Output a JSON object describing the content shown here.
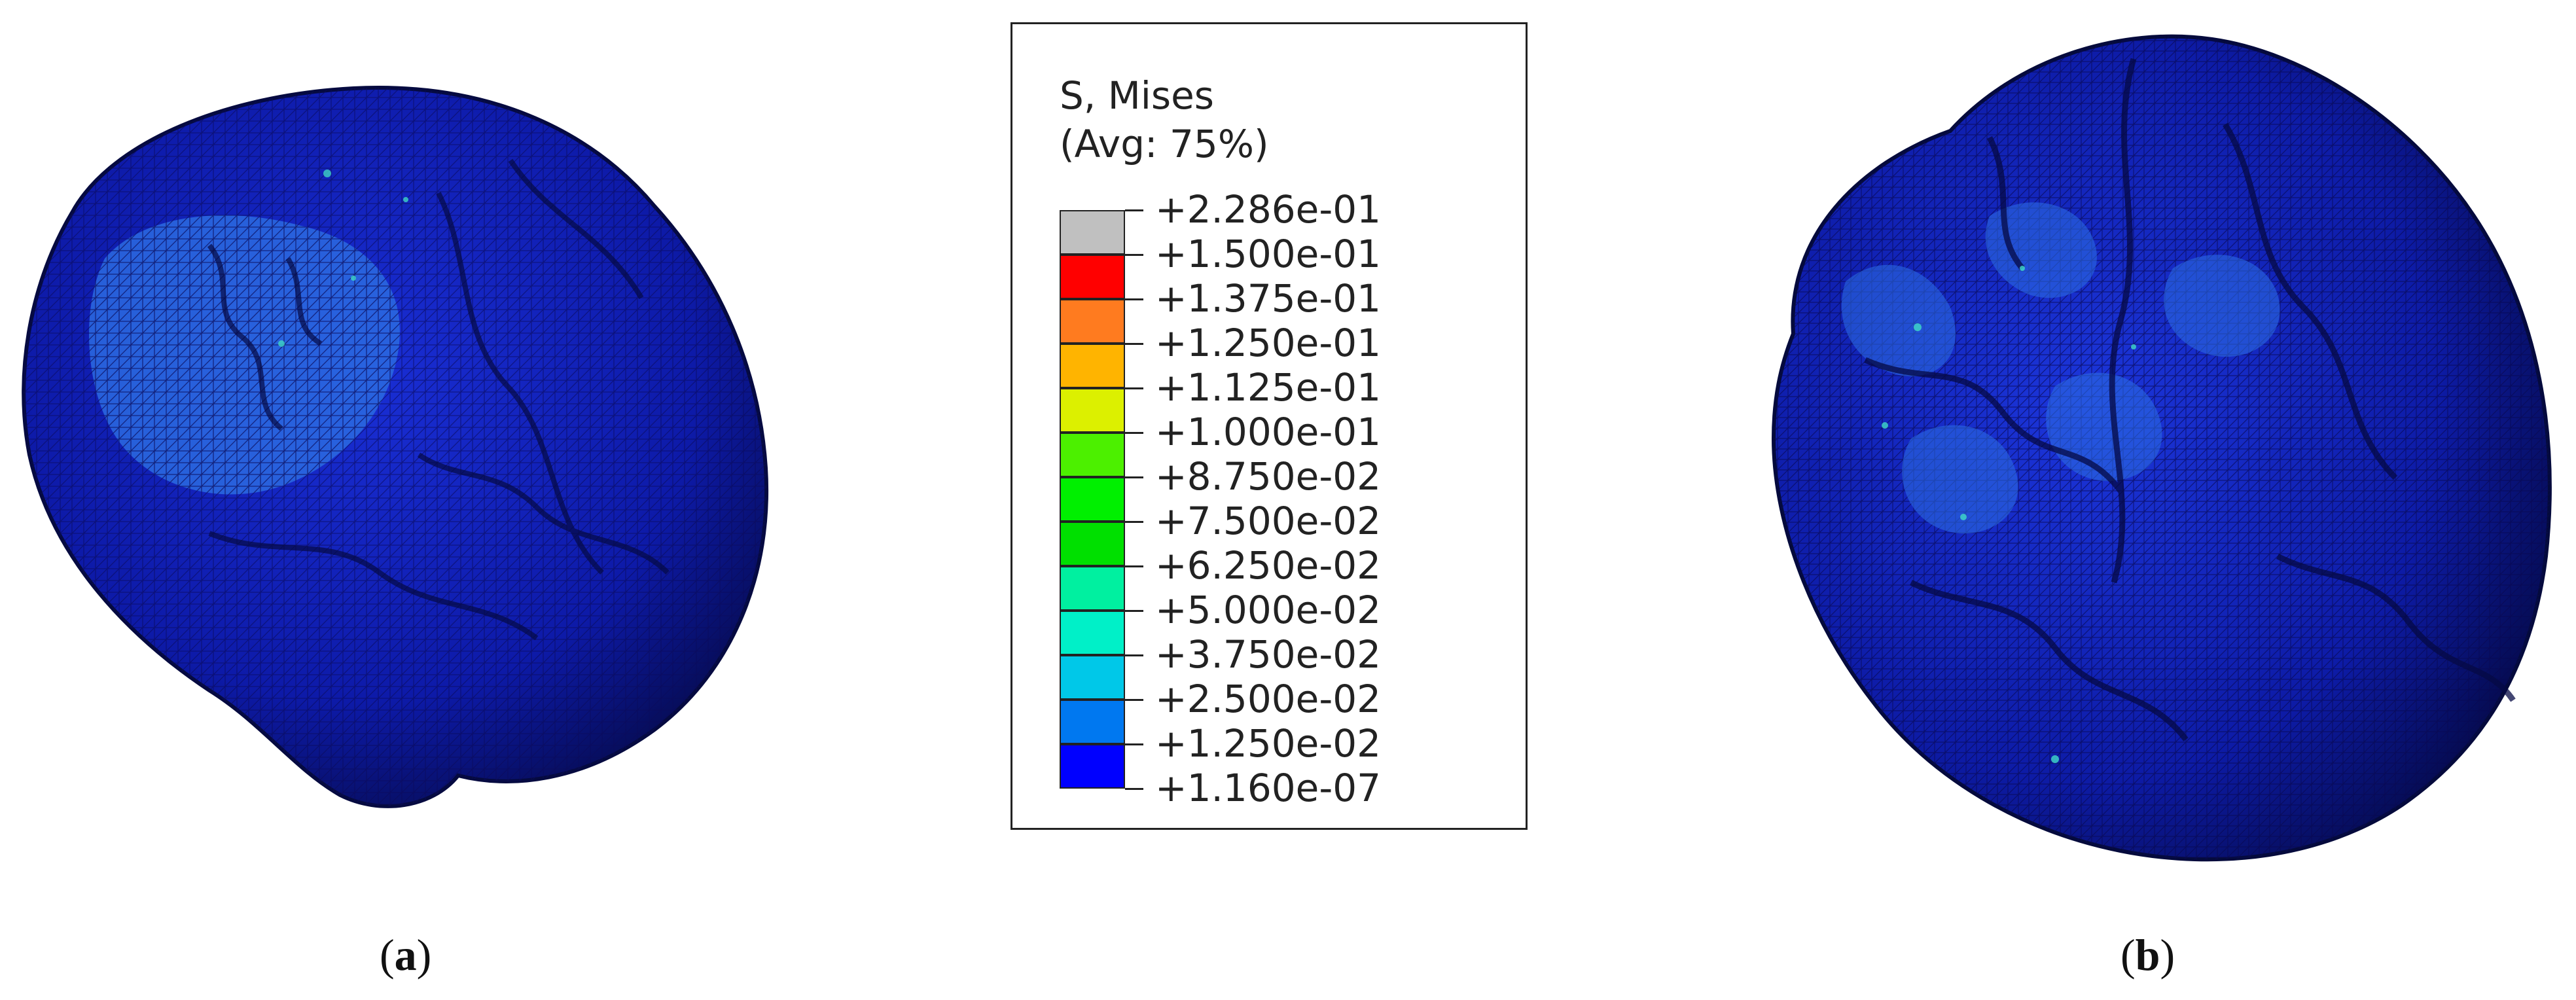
{
  "legend": {
    "title_line1": "S, Mises",
    "title_line2": "(Avg: 75%)",
    "labels": [
      "+2.286e-01",
      "+1.500e-01",
      "+1.375e-01",
      "+1.250e-01",
      "+1.125e-01",
      "+1.000e-01",
      "+8.750e-02",
      "+7.500e-02",
      "+6.250e-02",
      "+5.000e-02",
      "+3.750e-02",
      "+2.500e-02",
      "+1.250e-02",
      "+1.160e-07"
    ],
    "colors": [
      "#c0c0c0",
      "#ff0000",
      "#ff7b1f",
      "#ffb400",
      "#dcf000",
      "#4cf000",
      "#00f000",
      "#00e000",
      "#00f0a0",
      "#00f0c8",
      "#00c8e8",
      "#0078f0",
      "#0000ff"
    ]
  },
  "panels": {
    "a": {
      "caption_open": "(",
      "caption_letter": "a",
      "caption_close": ")"
    },
    "b": {
      "caption_open": "(",
      "caption_letter": "b",
      "caption_close": ")"
    }
  }
}
